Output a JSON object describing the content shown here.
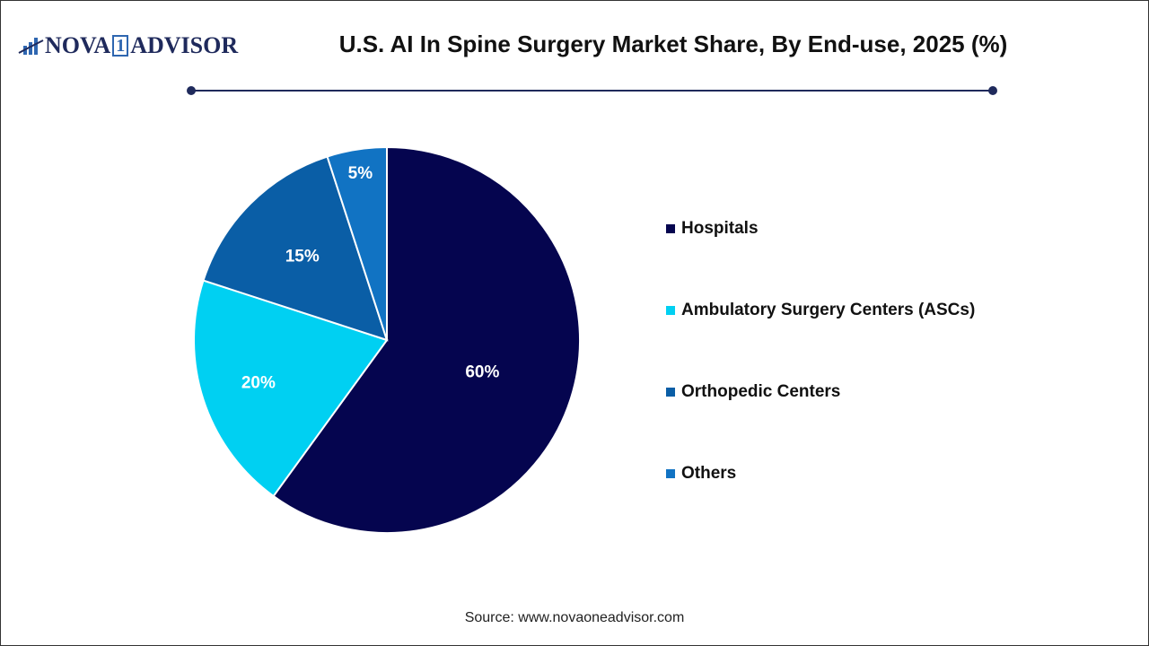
{
  "logo": {
    "text_a": "NOVA",
    "text_one": "1",
    "text_b": "ADVISOR"
  },
  "header": {
    "title": "U.S. AI In Spine Surgery Market Share, By End-use, 2025 (%)"
  },
  "chart_data": {
    "type": "pie",
    "title": "U.S. AI In Spine Surgery Market Share, By End-use, 2025 (%)",
    "categories": [
      "Hospitals",
      "Ambulatory Surgery Centers (ASCs)",
      "Orthopedic Centers",
      "Others"
    ],
    "values": [
      60,
      20,
      15,
      5
    ],
    "labels": [
      "60%",
      "20%",
      "15%",
      "5%"
    ],
    "colors": [
      "#05054f",
      "#00d0f2",
      "#0a5ea6",
      "#1173c3"
    ],
    "start_angle": "top, clockwise",
    "legend": "right"
  },
  "source": "Source: www.novaoneadvisor.com"
}
